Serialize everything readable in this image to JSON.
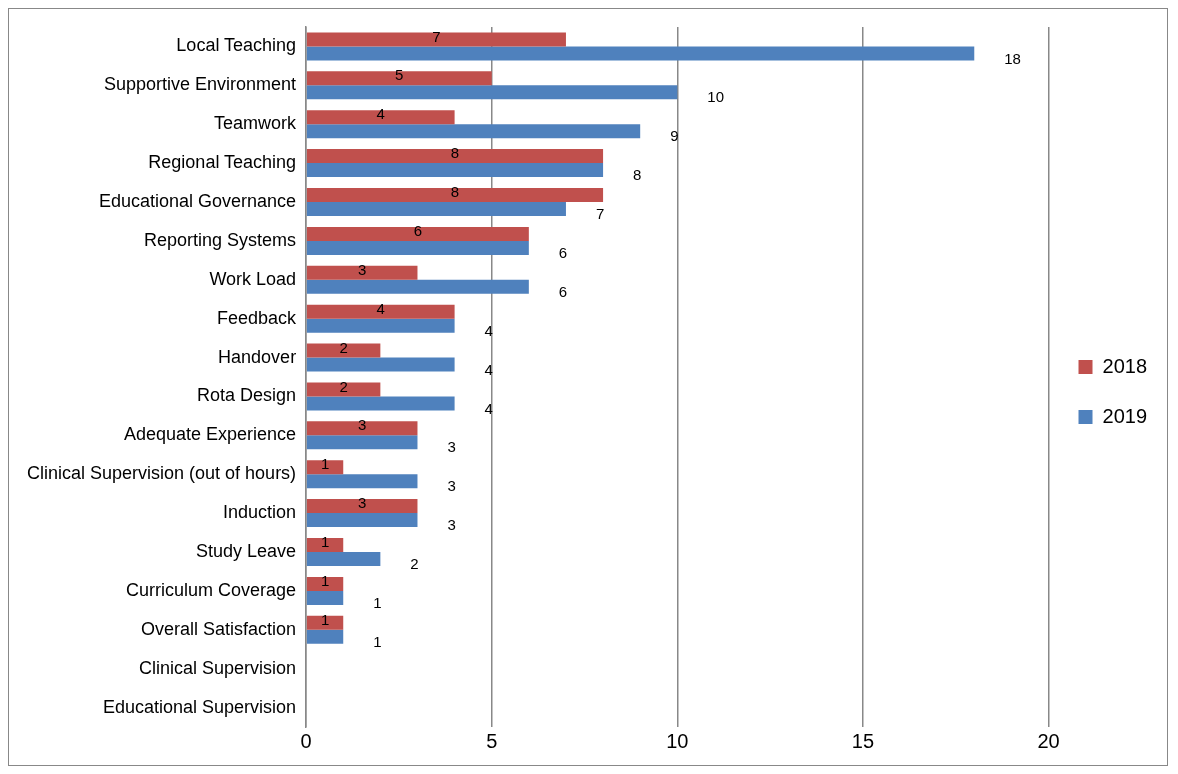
{
  "chart_data": {
    "type": "bar",
    "orientation": "horizontal",
    "categories": [
      "Local Teaching",
      "Supportive Environment",
      "Teamwork",
      "Regional Teaching",
      "Educational Governance",
      "Reporting Systems",
      "Work Load",
      "Feedback",
      "Handover",
      "Rota Design",
      "Adequate Experience",
      "Clinical Supervision (out of hours)",
      "Induction",
      "Study Leave",
      "Curriculum Coverage",
      "Overall Satisfaction",
      "Clinical Supervision",
      "Educational Supervision"
    ],
    "series": [
      {
        "name": "2018",
        "color": "#c0504d",
        "values": [
          7,
          5,
          4,
          8,
          8,
          6,
          3,
          4,
          2,
          2,
          3,
          1,
          3,
          1,
          1,
          1,
          null,
          null
        ]
      },
      {
        "name": "2019",
        "color": "#4f81bd",
        "values": [
          18,
          10,
          9,
          8,
          7,
          6,
          6,
          4,
          4,
          4,
          3,
          3,
          3,
          2,
          1,
          1,
          null,
          null
        ]
      }
    ],
    "xlim": [
      0,
      20
    ],
    "xticks": [
      0,
      5,
      10,
      15,
      20
    ],
    "grid": "x",
    "legend": "right",
    "data_labels": true
  }
}
